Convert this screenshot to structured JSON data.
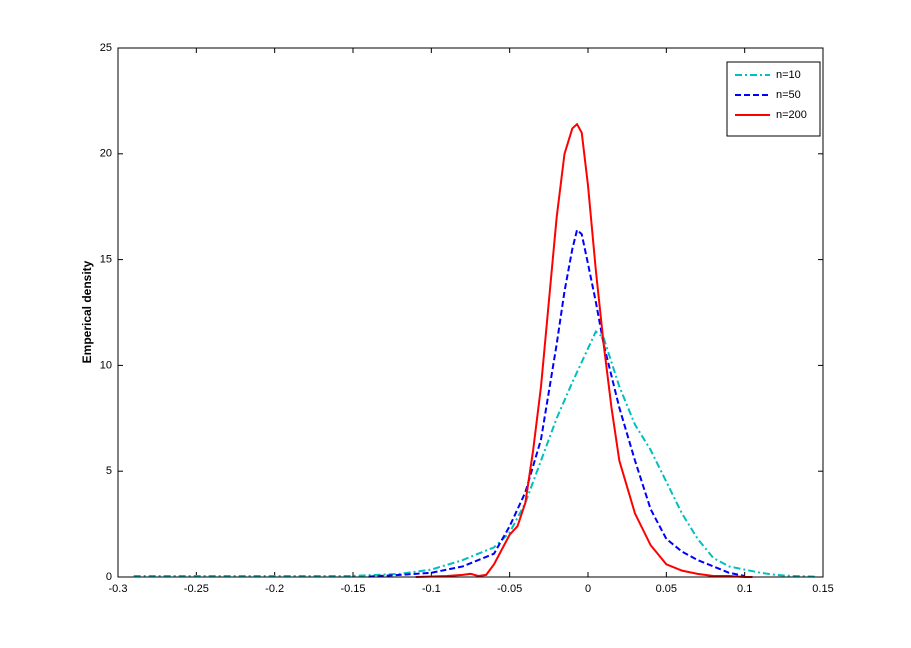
{
  "chart_data": {
    "type": "line",
    "ylabel": "Emperical density",
    "xlim": [
      -0.3,
      0.15
    ],
    "xticks": [
      -0.3,
      -0.25,
      -0.2,
      -0.15,
      -0.1,
      -0.05,
      0,
      0.05,
      0.1,
      0.15
    ],
    "ylim": [
      0,
      25
    ],
    "yticks": [
      0,
      5,
      10,
      15,
      20,
      25
    ],
    "grid": false,
    "legend": "northeast",
    "series": [
      {
        "name": "n=10",
        "color": "#00bfbf",
        "linestyle": "dashdot",
        "x": [
          -0.29,
          -0.25,
          -0.2,
          -0.15,
          -0.12,
          -0.1,
          -0.08,
          -0.06,
          -0.05,
          -0.04,
          -0.03,
          -0.02,
          -0.01,
          0,
          0.005,
          0.01,
          0.02,
          0.03,
          0.04,
          0.05,
          0.06,
          0.07,
          0.08,
          0.09,
          0.1,
          0.11,
          0.12,
          0.13,
          0.145
        ],
        "values": [
          0.05,
          0.05,
          0.05,
          0.05,
          0.15,
          0.35,
          0.8,
          1.4,
          2.1,
          3.5,
          5.5,
          7.5,
          9.2,
          10.8,
          11.6,
          11.3,
          9,
          7.2,
          6,
          4.5,
          3,
          1.8,
          0.9,
          0.5,
          0.35,
          0.2,
          0.1,
          0.05,
          0.02
        ]
      },
      {
        "name": "n=50",
        "color": "#0000ff",
        "linestyle": "dashed",
        "x": [
          -0.14,
          -0.12,
          -0.1,
          -0.08,
          -0.06,
          -0.05,
          -0.04,
          -0.03,
          -0.02,
          -0.015,
          -0.01,
          -0.007,
          -0.004,
          0,
          0.005,
          0.01,
          0.02,
          0.03,
          0.04,
          0.05,
          0.06,
          0.07,
          0.08,
          0.09,
          0.1
        ],
        "values": [
          0.02,
          0.1,
          0.2,
          0.5,
          1.1,
          2.4,
          4,
          6.5,
          11,
          13.5,
          15.5,
          16.4,
          16.2,
          14.8,
          13,
          11,
          8,
          5.5,
          3.2,
          1.8,
          1.2,
          0.8,
          0.5,
          0.2,
          0.05
        ]
      },
      {
        "name": "n=200",
        "color": "#ff0000",
        "linestyle": "solid",
        "x": [
          -0.11,
          -0.09,
          -0.08,
          -0.075,
          -0.07,
          -0.065,
          -0.06,
          -0.055,
          -0.05,
          -0.045,
          -0.04,
          -0.035,
          -0.03,
          -0.025,
          -0.02,
          -0.015,
          -0.01,
          -0.007,
          -0.004,
          0,
          0.005,
          0.01,
          0.015,
          0.02,
          0.03,
          0.04,
          0.05,
          0.06,
          0.07,
          0.08,
          0.09,
          0.1,
          0.105
        ],
        "values": [
          0,
          0.05,
          0.1,
          0.15,
          0.05,
          0.1,
          0.6,
          1.3,
          2,
          2.4,
          3.5,
          6,
          9,
          13,
          17,
          20,
          21.2,
          21.4,
          21,
          18.5,
          14.5,
          11,
          8,
          5.5,
          3,
          1.5,
          0.6,
          0.3,
          0.15,
          0.05,
          0.05,
          0,
          0
        ]
      }
    ]
  }
}
